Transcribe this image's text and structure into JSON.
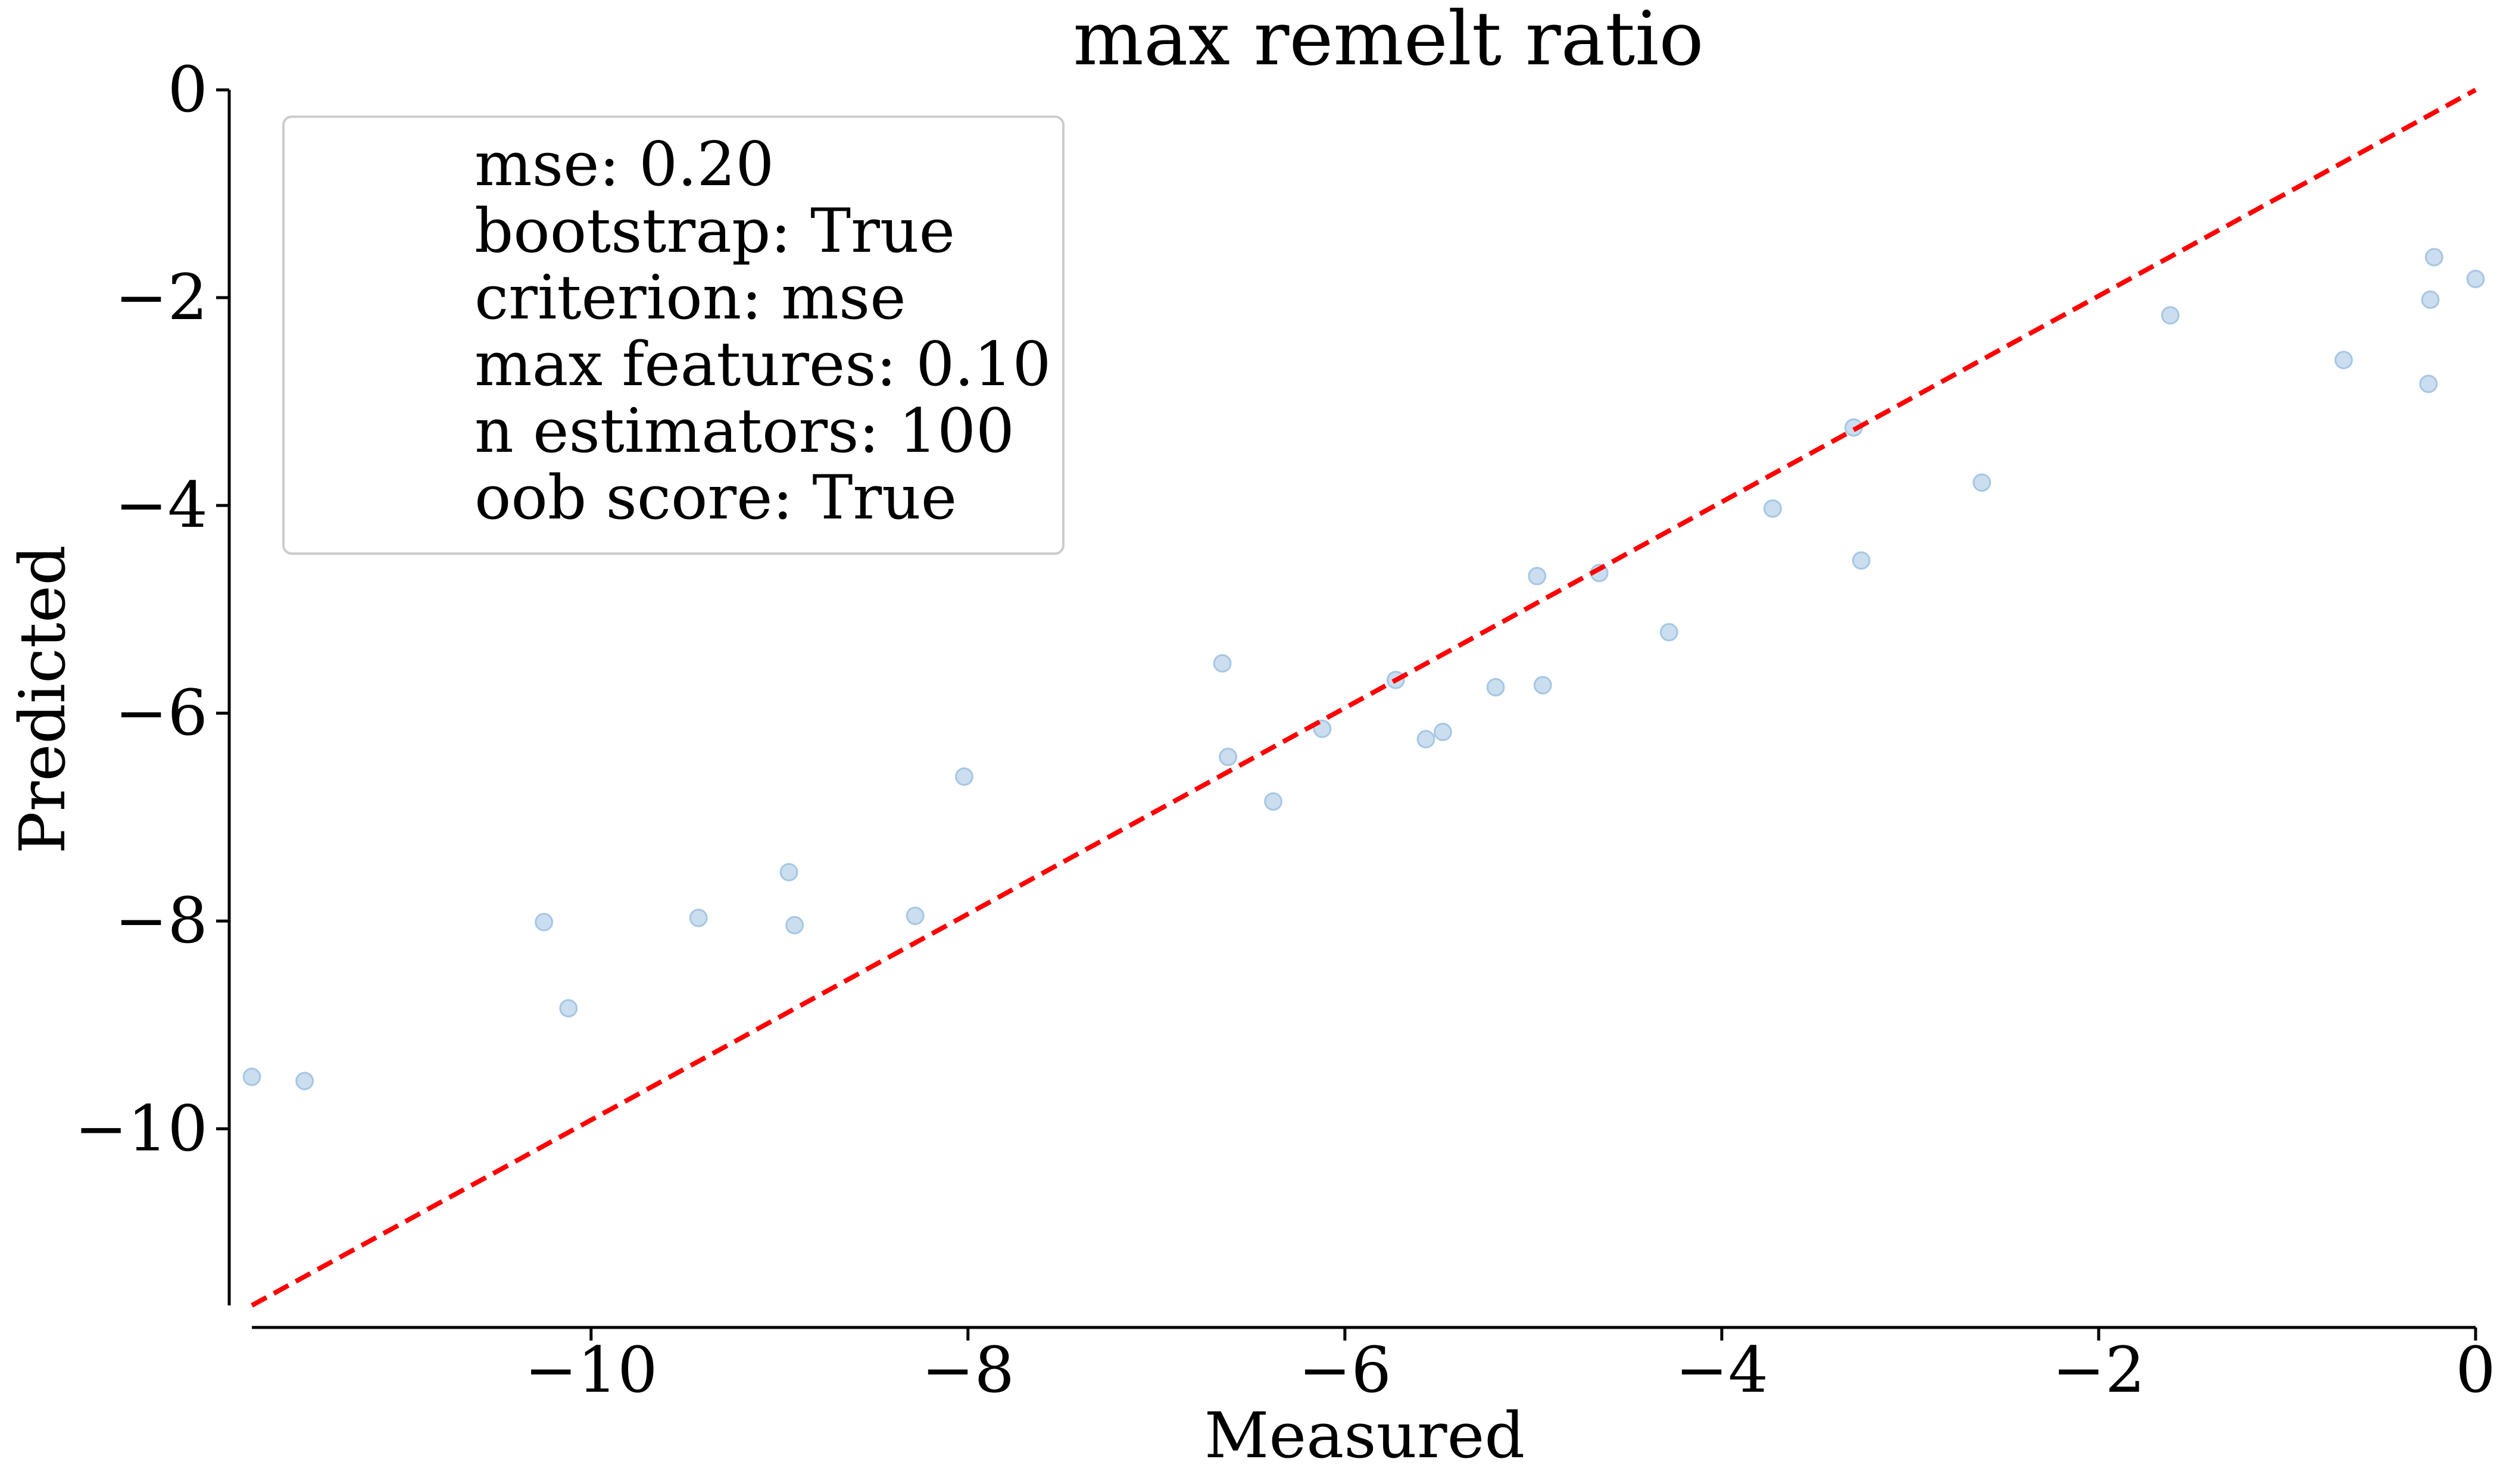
{
  "chart_data": {
    "type": "scatter",
    "title": "max remelt ratio",
    "xlabel": "Measured",
    "ylabel": "Predicted",
    "xlim": [
      -11.8,
      0
    ],
    "ylim": [
      -11.7,
      0
    ],
    "xticks": [
      -10,
      -8,
      -6,
      -4,
      -2,
      0
    ],
    "yticks": [
      0,
      -2,
      -4,
      -6,
      -8,
      -10
    ],
    "xtick_labels": [
      "−10",
      "−8",
      "−6",
      "−4",
      "−2",
      "0"
    ],
    "ytick_labels": [
      "0",
      "−2",
      "−4",
      "−6",
      "−8",
      "−10"
    ],
    "grid": false,
    "reference_line": {
      "x": [
        -11.8,
        0
      ],
      "y": [
        -11.7,
        0
      ],
      "style": "dashed",
      "color": "#ff0000"
    },
    "point_color": "#a6c8e4",
    "legend_placement": "top-left",
    "legend_lines": [
      "mse: 0.20",
      "bootstrap: True",
      "criterion: mse",
      "max features: 0.10",
      "n estimators: 100",
      "oob score: True"
    ],
    "points": [
      {
        "x": -11.8,
        "y": -9.5
      },
      {
        "x": -11.52,
        "y": -9.54
      },
      {
        "x": -10.25,
        "y": -8.01
      },
      {
        "x": -10.12,
        "y": -8.84
      },
      {
        "x": -9.43,
        "y": -7.97
      },
      {
        "x": -8.95,
        "y": -7.53
      },
      {
        "x": -8.92,
        "y": -8.04
      },
      {
        "x": -8.28,
        "y": -7.95
      },
      {
        "x": -8.02,
        "y": -6.61
      },
      {
        "x": -6.65,
        "y": -5.52
      },
      {
        "x": -6.62,
        "y": -6.42
      },
      {
        "x": -6.38,
        "y": -6.85
      },
      {
        "x": -6.12,
        "y": -6.15
      },
      {
        "x": -5.73,
        "y": -5.68
      },
      {
        "x": -5.57,
        "y": -6.25
      },
      {
        "x": -5.48,
        "y": -6.18
      },
      {
        "x": -5.2,
        "y": -5.75
      },
      {
        "x": -4.98,
        "y": -4.68
      },
      {
        "x": -4.95,
        "y": -5.73
      },
      {
        "x": -4.65,
        "y": -4.65
      },
      {
        "x": -4.28,
        "y": -5.22
      },
      {
        "x": -3.73,
        "y": -4.03
      },
      {
        "x": -3.3,
        "y": -3.25
      },
      {
        "x": -3.26,
        "y": -4.53
      },
      {
        "x": -2.62,
        "y": -3.78
      },
      {
        "x": -1.62,
        "y": -2.17
      },
      {
        "x": -0.7,
        "y": -2.6
      },
      {
        "x": -0.25,
        "y": -2.83
      },
      {
        "x": -0.24,
        "y": -2.02
      },
      {
        "x": -0.22,
        "y": -1.61
      },
      {
        "x": 0.0,
        "y": -1.82
      }
    ]
  }
}
